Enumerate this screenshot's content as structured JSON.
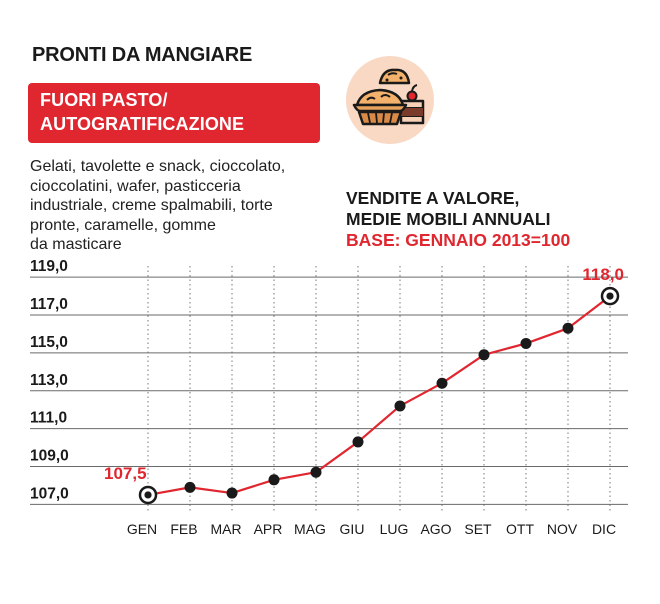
{
  "heading": "PRONTI DA MANGIARE",
  "category": {
    "line1": "FUORI PASTO/",
    "line2": "AUTOGRATIFICAZIONE"
  },
  "description_lines": [
    "Gelati, tavolette e snack, cioccolato,",
    "cioccolatini, wafer, pasticceria",
    "industriale, creme spalmabili, torte",
    "pronte, caramelle, gomme",
    "da masticare"
  ],
  "icon": "pie-and-cake-icon",
  "colors": {
    "accent": "#e0262f",
    "icon_bg": "#f9d9c4",
    "text": "#1a1a1a"
  },
  "chart_data": {
    "type": "line",
    "title_lines": [
      "VENDITE A VALORE,",
      "MEDIE MOBILI ANNUALI"
    ],
    "base_label": "BASE: GENNAIO 2013=100",
    "categories": [
      "GEN",
      "FEB",
      "MAR",
      "APR",
      "MAG",
      "GIU",
      "LUG",
      "AGO",
      "SET",
      "OTT",
      "NOV",
      "DIC"
    ],
    "series": [
      {
        "values": [
          107.5,
          107.9,
          107.6,
          108.3,
          108.7,
          110.3,
          112.2,
          113.4,
          114.9,
          115.5,
          116.3,
          118.0
        ]
      }
    ],
    "ylim": [
      106.6,
      119.8
    ],
    "yticks": [
      107.0,
      109.0,
      111.0,
      113.0,
      115.0,
      117.0,
      119.0
    ],
    "ytick_labels": [
      "107,0",
      "109,0",
      "111,0",
      "113,0",
      "115,0",
      "117,0",
      "119,0"
    ],
    "annotations": [
      {
        "index": 0,
        "text": "107,5"
      },
      {
        "index": 11,
        "text": "118,0"
      }
    ],
    "grid": "horizontal solid, vertical dotted",
    "legend": "none"
  }
}
